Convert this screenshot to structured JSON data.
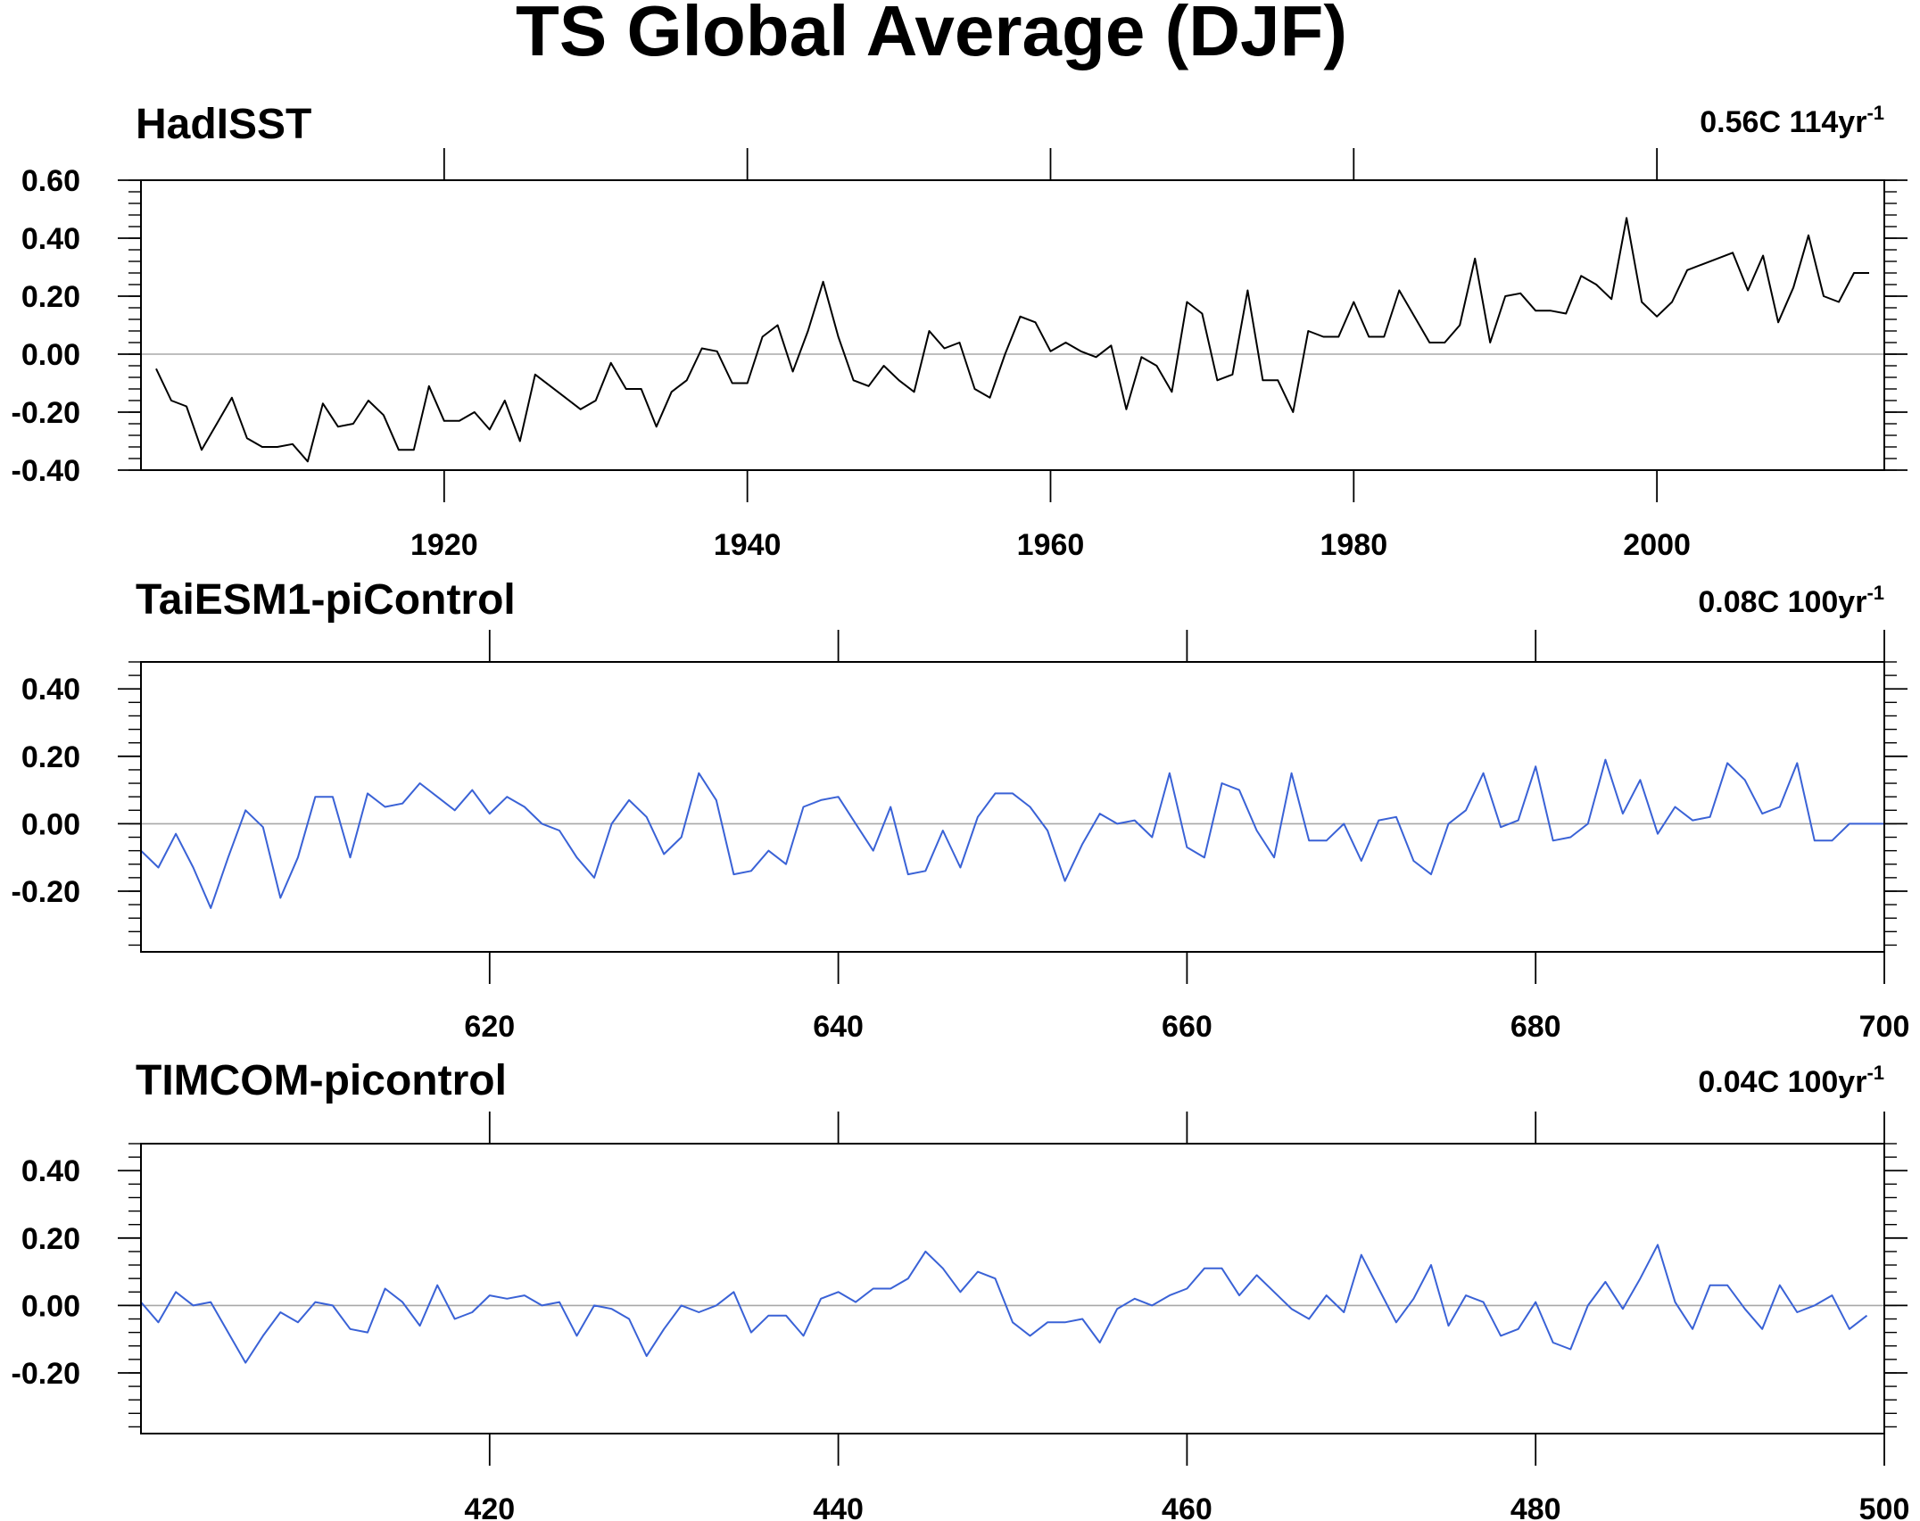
{
  "title": "TS Global Average (DJF)",
  "colors": {
    "observed": "#000000",
    "model": "#3a62d6",
    "zero_line": "#a8a8a8"
  },
  "chart_data": [
    {
      "type": "line",
      "title": "HadISST",
      "trend_value": "0.56C 114yr",
      "trend_exp": "-1",
      "color": "#000000",
      "xlim": [
        1900,
        2015
      ],
      "ylim": [
        -0.4,
        0.6
      ],
      "x_ticks": [
        1920,
        1940,
        1960,
        1980,
        2000
      ],
      "y_ticks": [
        -0.4,
        -0.2,
        0.0,
        0.2,
        0.4,
        0.6
      ],
      "y_tick_labels": [
        "-0.40",
        "-0.20",
        "0.00",
        "0.20",
        "0.40",
        "0.60"
      ],
      "grid": false,
      "series": [
        {
          "x_start": 1901,
          "values": [
            -0.05,
            -0.16,
            -0.18,
            -0.33,
            -0.24,
            -0.15,
            -0.29,
            -0.32,
            -0.32,
            -0.31,
            -0.37,
            -0.17,
            -0.25,
            -0.24,
            -0.16,
            -0.21,
            -0.33,
            -0.33,
            -0.11,
            -0.23,
            -0.23,
            -0.2,
            -0.26,
            -0.16,
            -0.3,
            -0.07,
            -0.11,
            -0.15,
            -0.19,
            -0.16,
            -0.03,
            -0.12,
            -0.12,
            -0.25,
            -0.13,
            -0.09,
            0.02,
            0.01,
            -0.1,
            -0.1,
            0.06,
            0.1,
            -0.06,
            0.08,
            0.25,
            0.06,
            -0.09,
            -0.11,
            -0.04,
            -0.09,
            -0.13,
            0.08,
            0.02,
            0.04,
            -0.12,
            -0.15,
            0.0,
            0.13,
            0.11,
            0.01,
            0.04,
            0.01,
            -0.01,
            0.03,
            -0.19,
            -0.01,
            -0.04,
            -0.13,
            0.18,
            0.14,
            -0.09,
            -0.07,
            0.22,
            -0.09,
            -0.09,
            -0.2,
            0.08,
            0.06,
            0.06,
            0.18,
            0.06,
            0.06,
            0.22,
            0.13,
            0.04,
            0.04,
            0.1,
            0.33,
            0.04,
            0.2,
            0.21,
            0.15,
            0.15,
            0.14,
            0.27,
            0.24,
            0.19,
            0.47,
            0.18,
            0.13,
            0.18,
            0.29,
            0.31,
            0.33,
            0.35,
            0.22,
            0.34,
            0.11,
            0.23,
            0.41,
            0.2,
            0.18,
            0.28,
            0.28
          ]
        }
      ]
    },
    {
      "type": "line",
      "title": "TaiESM1-piControl",
      "trend_value": "0.08C 100yr",
      "trend_exp": "-1",
      "color": "#3a62d6",
      "xlim": [
        600,
        700
      ],
      "ylim": [
        -0.38,
        0.48
      ],
      "x_ticks": [
        620,
        640,
        660,
        680,
        700
      ],
      "y_ticks": [
        -0.2,
        0.0,
        0.2,
        0.4
      ],
      "y_tick_labels": [
        "-0.20",
        "0.00",
        "0.20",
        "0.40"
      ],
      "grid": false,
      "series": [
        {
          "x_start": 600,
          "values": [
            -0.08,
            -0.13,
            -0.03,
            -0.13,
            -0.25,
            -0.1,
            0.04,
            -0.01,
            -0.22,
            -0.1,
            0.08,
            0.08,
            -0.1,
            0.09,
            0.05,
            0.06,
            0.12,
            0.08,
            0.04,
            0.1,
            0.03,
            0.08,
            0.05,
            0.0,
            -0.02,
            -0.1,
            -0.16,
            0.0,
            0.07,
            0.02,
            -0.09,
            -0.04,
            0.15,
            0.07,
            -0.15,
            -0.14,
            -0.08,
            -0.12,
            0.05,
            0.07,
            0.08,
            0.0,
            -0.08,
            0.05,
            -0.15,
            -0.14,
            -0.02,
            -0.13,
            0.02,
            0.09,
            0.09,
            0.05,
            -0.02,
            -0.17,
            -0.06,
            0.03,
            0.0,
            0.01,
            -0.04,
            0.15,
            -0.07,
            -0.1,
            0.12,
            0.1,
            -0.02,
            -0.1,
            0.15,
            -0.05,
            -0.05,
            0.0,
            -0.11,
            0.01,
            0.02,
            -0.11,
            -0.15,
            0.0,
            0.04,
            0.15,
            -0.01,
            0.01,
            0.17,
            -0.05,
            -0.04,
            0.0,
            0.19,
            0.03,
            0.13,
            -0.03,
            0.05,
            0.01,
            0.02,
            0.18,
            0.13,
            0.03,
            0.05,
            0.18,
            -0.05,
            -0.05,
            0.0,
            0.0,
            0.0
          ]
        }
      ]
    },
    {
      "type": "line",
      "title": "TIMCOM-picontrol",
      "trend_value": "0.04C 100yr",
      "trend_exp": "-1",
      "color": "#3a62d6",
      "xlim": [
        400,
        500
      ],
      "ylim": [
        -0.38,
        0.48
      ],
      "x_ticks": [
        420,
        440,
        460,
        480,
        500
      ],
      "y_ticks": [
        -0.2,
        0.0,
        0.2,
        0.4
      ],
      "y_tick_labels": [
        "-0.20",
        "0.00",
        "0.20",
        "0.40"
      ],
      "grid": false,
      "series": [
        {
          "x_start": 400,
          "values": [
            0.01,
            -0.05,
            0.04,
            0.0,
            0.01,
            -0.08,
            -0.17,
            -0.09,
            -0.02,
            -0.05,
            0.01,
            0.0,
            -0.07,
            -0.08,
            0.05,
            0.01,
            -0.06,
            0.06,
            -0.04,
            -0.02,
            0.03,
            0.02,
            0.03,
            0.0,
            0.01,
            -0.09,
            0.0,
            -0.01,
            -0.04,
            -0.15,
            -0.07,
            0.0,
            -0.02,
            0.0,
            0.04,
            -0.08,
            -0.03,
            -0.03,
            -0.09,
            0.02,
            0.04,
            0.01,
            0.05,
            0.05,
            0.08,
            0.16,
            0.11,
            0.04,
            0.1,
            0.08,
            -0.05,
            -0.09,
            -0.05,
            -0.05,
            -0.04,
            -0.11,
            -0.01,
            0.02,
            0.0,
            0.03,
            0.05,
            0.11,
            0.11,
            0.03,
            0.09,
            0.04,
            -0.01,
            -0.04,
            0.03,
            -0.02,
            0.15,
            0.05,
            -0.05,
            0.02,
            0.12,
            -0.06,
            0.03,
            0.01,
            -0.09,
            -0.07,
            0.01,
            -0.11,
            -0.13,
            0.0,
            0.07,
            -0.01,
            0.08,
            0.18,
            0.01,
            -0.07,
            0.06,
            0.06,
            -0.01,
            -0.07,
            0.06,
            -0.02,
            0.0,
            0.03,
            -0.07,
            -0.03
          ]
        }
      ]
    }
  ]
}
